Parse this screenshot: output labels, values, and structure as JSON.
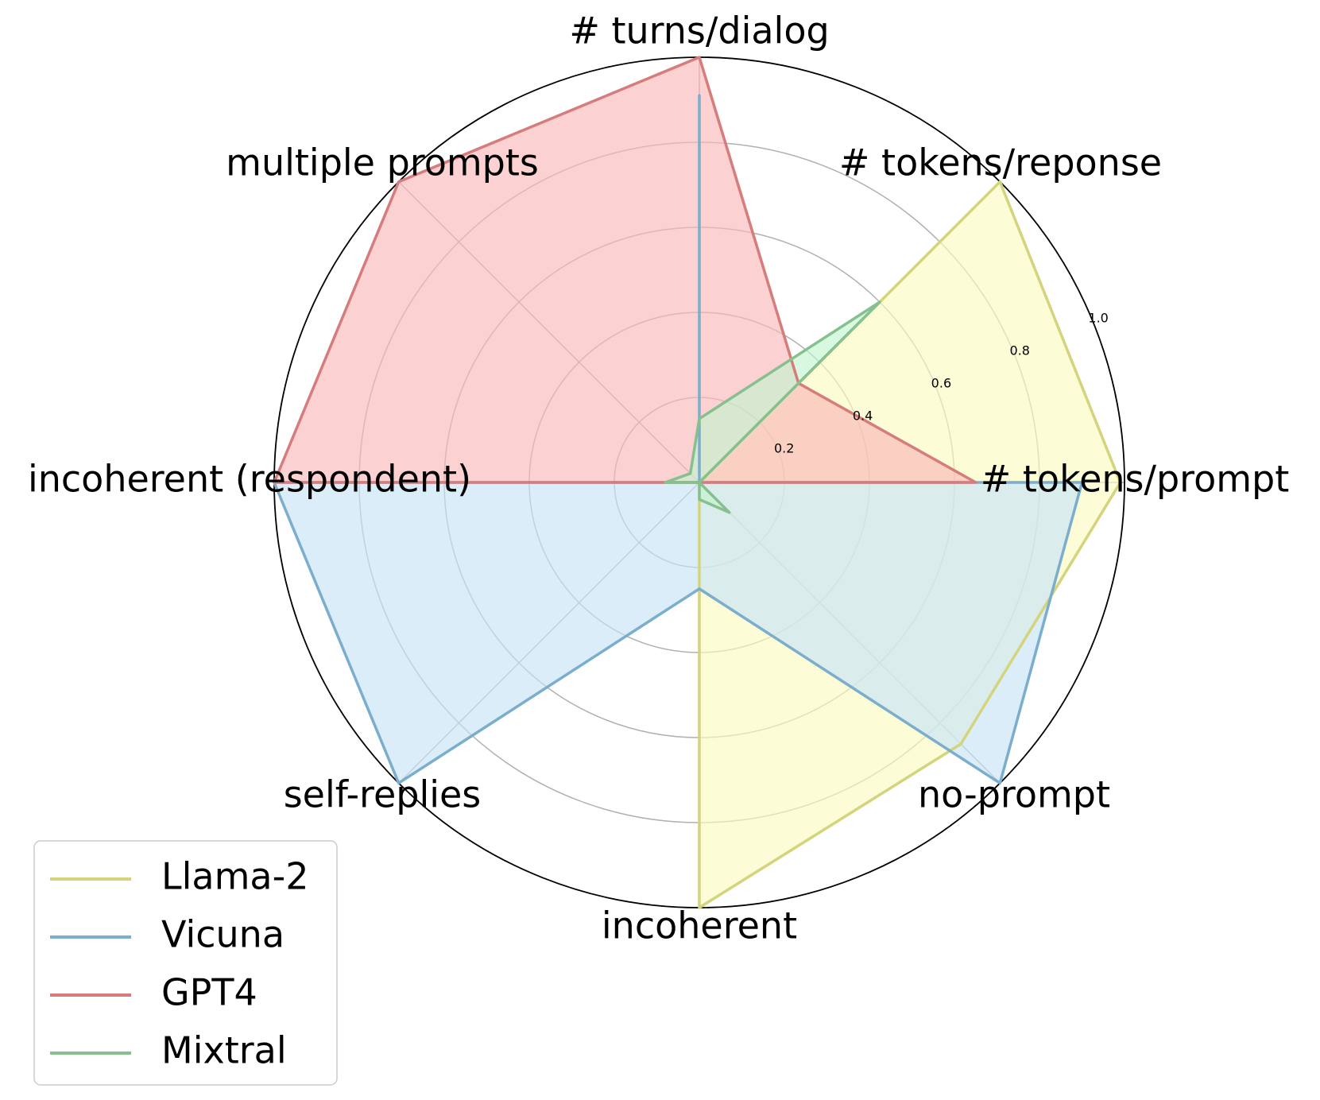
{
  "chart_data": {
    "type": "radar",
    "axes": [
      "# tokens/prompt",
      "# tokens/reponse",
      "# turns/dialog",
      "multiple prompts",
      "incoherent (respondent)",
      "self-replies",
      "incoherent",
      "no-prompt"
    ],
    "rlim": [
      0,
      1.0
    ],
    "rticks": [
      0.2,
      0.4,
      0.6,
      0.8,
      1.0
    ],
    "rtick_labels": [
      "0.2",
      "0.4",
      "0.6",
      "0.8",
      "1.0"
    ],
    "grid": true,
    "legend_position": "bottom-left",
    "series": [
      {
        "name": "Llama-2",
        "color": "#d4d47c",
        "fill": "#fafac2",
        "values": [
          0.99,
          1.0,
          0.0,
          0.0,
          0.0,
          0.0,
          1.0,
          0.87
        ]
      },
      {
        "name": "Vicuna",
        "color": "#7aaecc",
        "fill": "#c9e4f8",
        "values": [
          0.9,
          0.0,
          0.91,
          0.0,
          1.0,
          1.0,
          0.25,
          1.0
        ]
      },
      {
        "name": "GPT4",
        "color": "#d67c7c",
        "fill": "#f9b8b8",
        "values": [
          0.65,
          0.33,
          1.0,
          1.0,
          1.0,
          0.0,
          0.0,
          0.0
        ]
      },
      {
        "name": "Mixtral",
        "color": "#86c08e",
        "fill": "#c4f5d0",
        "values": [
          0.0,
          0.6,
          0.15,
          0.03,
          0.08,
          0.0,
          0.04,
          0.1
        ]
      }
    ]
  }
}
